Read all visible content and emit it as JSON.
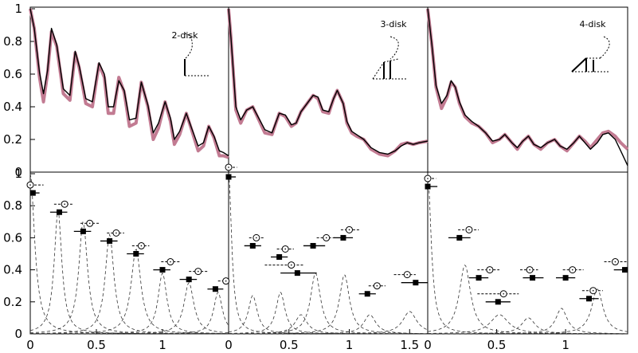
{
  "chart_data": [
    {
      "type": "line",
      "panel": "top-1",
      "label": "2-disk",
      "xlim": [
        0,
        1.5
      ],
      "ylim": [
        0,
        1
      ],
      "x_ticks": [],
      "y_ticks": [
        0,
        0.2,
        0.4,
        0.6,
        0.8,
        1
      ],
      "series": [
        {
          "color": "#c27b92",
          "x": [
            0.0,
            0.03,
            0.07,
            0.1,
            0.13,
            0.16,
            0.2,
            0.25,
            0.3,
            0.34,
            0.37,
            0.42,
            0.47,
            0.52,
            0.56,
            0.59,
            0.63,
            0.67,
            0.71,
            0.75,
            0.8,
            0.84,
            0.89,
            0.93,
            0.97,
            1.02,
            1.06,
            1.09,
            1.13,
            1.18,
            1.22,
            1.27,
            1.31,
            1.35,
            1.39,
            1.43,
            1.46,
            1.5
          ],
          "y": [
            1.0,
            0.88,
            0.58,
            0.43,
            0.6,
            0.86,
            0.77,
            0.48,
            0.44,
            0.73,
            0.64,
            0.42,
            0.4,
            0.66,
            0.58,
            0.36,
            0.36,
            0.58,
            0.49,
            0.28,
            0.3,
            0.55,
            0.4,
            0.2,
            0.27,
            0.43,
            0.31,
            0.17,
            0.23,
            0.36,
            0.26,
            0.13,
            0.16,
            0.28,
            0.21,
            0.1,
            0.1,
            0.09
          ]
        },
        {
          "color": "#000000",
          "x": [
            0.0,
            0.03,
            0.07,
            0.1,
            0.13,
            0.16,
            0.2,
            0.25,
            0.3,
            0.34,
            0.37,
            0.42,
            0.47,
            0.52,
            0.56,
            0.59,
            0.63,
            0.67,
            0.71,
            0.75,
            0.8,
            0.84,
            0.89,
            0.93,
            0.97,
            1.02,
            1.06,
            1.09,
            1.13,
            1.18,
            1.22,
            1.27,
            1.31,
            1.35,
            1.39,
            1.43,
            1.46,
            1.5
          ],
          "y": [
            1.0,
            0.88,
            0.61,
            0.48,
            0.62,
            0.88,
            0.78,
            0.51,
            0.47,
            0.74,
            0.65,
            0.45,
            0.43,
            0.67,
            0.6,
            0.4,
            0.4,
            0.56,
            0.5,
            0.32,
            0.33,
            0.55,
            0.41,
            0.24,
            0.3,
            0.43,
            0.33,
            0.2,
            0.25,
            0.36,
            0.27,
            0.16,
            0.18,
            0.28,
            0.22,
            0.13,
            0.12,
            0.1
          ]
        }
      ]
    },
    {
      "type": "line",
      "panel": "top-2",
      "label": "3-disk",
      "xlim": [
        0,
        1.65
      ],
      "ylim": [
        0,
        1
      ],
      "x_ticks": [],
      "y_ticks": [],
      "series": [
        {
          "color": "#c27b92",
          "x": [
            0.0,
            0.02,
            0.06,
            0.1,
            0.15,
            0.2,
            0.25,
            0.3,
            0.36,
            0.42,
            0.47,
            0.52,
            0.56,
            0.6,
            0.65,
            0.7,
            0.74,
            0.78,
            0.83,
            0.87,
            0.9,
            0.95,
            0.98,
            1.02,
            1.06,
            1.12,
            1.18,
            1.25,
            1.32,
            1.38,
            1.43,
            1.48,
            1.53,
            1.58,
            1.65
          ],
          "y": [
            1.0,
            0.82,
            0.38,
            0.3,
            0.38,
            0.4,
            0.32,
            0.24,
            0.23,
            0.36,
            0.34,
            0.28,
            0.3,
            0.37,
            0.42,
            0.47,
            0.45,
            0.37,
            0.36,
            0.45,
            0.5,
            0.42,
            0.3,
            0.24,
            0.22,
            0.2,
            0.14,
            0.11,
            0.1,
            0.13,
            0.17,
            0.18,
            0.17,
            0.18,
            0.19
          ]
        },
        {
          "color": "#000000",
          "x": [
            0.0,
            0.02,
            0.06,
            0.1,
            0.15,
            0.2,
            0.25,
            0.3,
            0.36,
            0.42,
            0.47,
            0.52,
            0.56,
            0.6,
            0.65,
            0.7,
            0.74,
            0.78,
            0.83,
            0.87,
            0.9,
            0.95,
            0.98,
            1.02,
            1.06,
            1.12,
            1.18,
            1.25,
            1.32,
            1.38,
            1.43,
            1.48,
            1.53,
            1.58,
            1.65
          ],
          "y": [
            1.0,
            0.82,
            0.4,
            0.32,
            0.38,
            0.4,
            0.33,
            0.26,
            0.24,
            0.36,
            0.35,
            0.29,
            0.3,
            0.37,
            0.42,
            0.47,
            0.46,
            0.38,
            0.37,
            0.45,
            0.5,
            0.42,
            0.31,
            0.25,
            0.23,
            0.2,
            0.15,
            0.12,
            0.11,
            0.13,
            0.16,
            0.18,
            0.17,
            0.18,
            0.19
          ]
        }
      ]
    },
    {
      "type": "line",
      "panel": "top-3",
      "label": "4-disk",
      "xlim": [
        0,
        1.45
      ],
      "ylim": [
        0,
        1
      ],
      "x_ticks": [],
      "y_ticks": [],
      "series": [
        {
          "color": "#c27b92",
          "x": [
            0.0,
            0.03,
            0.06,
            0.1,
            0.14,
            0.17,
            0.2,
            0.23,
            0.27,
            0.32,
            0.37,
            0.42,
            0.47,
            0.52,
            0.56,
            0.61,
            0.65,
            0.69,
            0.73,
            0.77,
            0.82,
            0.87,
            0.92,
            0.96,
            1.01,
            1.06,
            1.1,
            1.14,
            1.18,
            1.23,
            1.27,
            1.31,
            1.36,
            1.4,
            1.45
          ],
          "y": [
            1.0,
            0.78,
            0.52,
            0.39,
            0.46,
            0.55,
            0.52,
            0.42,
            0.34,
            0.3,
            0.28,
            0.24,
            0.18,
            0.2,
            0.23,
            0.18,
            0.14,
            0.19,
            0.22,
            0.17,
            0.14,
            0.18,
            0.2,
            0.16,
            0.13,
            0.18,
            0.22,
            0.19,
            0.15,
            0.2,
            0.24,
            0.25,
            0.22,
            0.18,
            0.14
          ]
        },
        {
          "color": "#000000",
          "x": [
            0.0,
            0.03,
            0.06,
            0.1,
            0.14,
            0.17,
            0.2,
            0.23,
            0.27,
            0.32,
            0.37,
            0.42,
            0.47,
            0.52,
            0.56,
            0.61,
            0.65,
            0.69,
            0.73,
            0.77,
            0.82,
            0.87,
            0.92,
            0.96,
            1.01,
            1.06,
            1.1,
            1.14,
            1.18,
            1.23,
            1.27,
            1.31,
            1.36,
            1.4,
            1.45
          ],
          "y": [
            1.0,
            0.78,
            0.53,
            0.42,
            0.47,
            0.56,
            0.52,
            0.43,
            0.35,
            0.31,
            0.28,
            0.24,
            0.19,
            0.2,
            0.23,
            0.18,
            0.15,
            0.19,
            0.22,
            0.17,
            0.15,
            0.18,
            0.2,
            0.16,
            0.14,
            0.18,
            0.22,
            0.18,
            0.14,
            0.18,
            0.23,
            0.24,
            0.2,
            0.13,
            0.04
          ]
        }
      ]
    },
    {
      "type": "scatter",
      "panel": "bottom-1",
      "xlim": [
        0,
        1.5
      ],
      "ylim": [
        0,
        1
      ],
      "x_ticks": [
        0,
        0.5,
        1
      ],
      "y_ticks": [
        0,
        0.2,
        0.4,
        0.6,
        0.8,
        1
      ],
      "squares": [
        {
          "x": 0.02,
          "y": 0.88,
          "x_from": 0.0,
          "x_to": 0.07
        },
        {
          "x": 0.22,
          "y": 0.76,
          "x_from": 0.15,
          "x_to": 0.28
        },
        {
          "x": 0.4,
          "y": 0.64,
          "x_from": 0.33,
          "x_to": 0.46
        },
        {
          "x": 0.6,
          "y": 0.58,
          "x_from": 0.53,
          "x_to": 0.66
        },
        {
          "x": 0.8,
          "y": 0.5,
          "x_from": 0.73,
          "x_to": 0.86
        },
        {
          "x": 1.0,
          "y": 0.4,
          "x_from": 0.93,
          "x_to": 1.06
        },
        {
          "x": 1.2,
          "y": 0.34,
          "x_from": 1.13,
          "x_to": 1.26
        },
        {
          "x": 1.4,
          "y": 0.28,
          "x_from": 1.34,
          "x_to": 1.46
        }
      ],
      "circles": [
        {
          "x": 0.0,
          "y": 0.93,
          "x_from": 0.0,
          "x_to": 0.1
        },
        {
          "x": 0.26,
          "y": 0.81,
          "x_from": 0.18,
          "x_to": 0.32
        },
        {
          "x": 0.45,
          "y": 0.69,
          "x_from": 0.38,
          "x_to": 0.52
        },
        {
          "x": 0.65,
          "y": 0.63,
          "x_from": 0.58,
          "x_to": 0.71
        },
        {
          "x": 0.84,
          "y": 0.55,
          "x_from": 0.77,
          "x_to": 0.9
        },
        {
          "x": 1.06,
          "y": 0.45,
          "x_from": 0.99,
          "x_to": 1.13
        },
        {
          "x": 1.27,
          "y": 0.39,
          "x_from": 1.2,
          "x_to": 1.34
        },
        {
          "x": 1.48,
          "y": 0.33,
          "x_from": 1.42,
          "x_to": 1.5
        }
      ],
      "dashed_peaks": [
        {
          "center": 0.0,
          "height": 1.0,
          "width": 0.04
        },
        {
          "center": 0.21,
          "height": 0.77,
          "width": 0.035
        },
        {
          "center": 0.4,
          "height": 0.7,
          "width": 0.04
        },
        {
          "center": 0.6,
          "height": 0.62,
          "width": 0.04
        },
        {
          "center": 0.8,
          "height": 0.53,
          "width": 0.045
        },
        {
          "center": 1.0,
          "height": 0.38,
          "width": 0.04
        },
        {
          "center": 1.2,
          "height": 0.32,
          "width": 0.045
        },
        {
          "center": 1.42,
          "height": 0.26,
          "width": 0.04
        }
      ]
    },
    {
      "type": "scatter",
      "panel": "bottom-2",
      "xlim": [
        0,
        1.65
      ],
      "ylim": [
        0,
        1
      ],
      "x_ticks": [
        0,
        0.5,
        1,
        1.5
      ],
      "y_ticks": [],
      "squares": [
        {
          "x": 0.0,
          "y": 0.98,
          "x_from": 0.0,
          "x_to": 0.06
        },
        {
          "x": 0.2,
          "y": 0.55,
          "x_from": 0.13,
          "x_to": 0.27
        },
        {
          "x": 0.42,
          "y": 0.48,
          "x_from": 0.35,
          "x_to": 0.49
        },
        {
          "x": 0.57,
          "y": 0.38,
          "x_from": 0.43,
          "x_to": 0.73
        },
        {
          "x": 0.7,
          "y": 0.55,
          "x_from": 0.62,
          "x_to": 0.8
        },
        {
          "x": 0.95,
          "y": 0.6,
          "x_from": 0.87,
          "x_to": 1.03
        },
        {
          "x": 1.15,
          "y": 0.25,
          "x_from": 1.08,
          "x_to": 1.22
        },
        {
          "x": 1.55,
          "y": 0.32,
          "x_from": 1.43,
          "x_to": 1.65
        }
      ],
      "circles": [
        {
          "x": 0.0,
          "y": 1.04,
          "x_from": 0.0,
          "x_to": 0.07
        },
        {
          "x": 0.23,
          "y": 0.6,
          "x_from": 0.17,
          "x_to": 0.29
        },
        {
          "x": 0.47,
          "y": 0.53,
          "x_from": 0.4,
          "x_to": 0.54
        },
        {
          "x": 0.52,
          "y": 0.43,
          "x_from": 0.3,
          "x_to": 0.62
        },
        {
          "x": 0.81,
          "y": 0.6,
          "x_from": 0.73,
          "x_to": 0.88
        },
        {
          "x": 1.0,
          "y": 0.65,
          "x_from": 0.93,
          "x_to": 1.09
        },
        {
          "x": 1.23,
          "y": 0.3,
          "x_from": 1.16,
          "x_to": 1.3
        },
        {
          "x": 1.48,
          "y": 0.37,
          "x_from": 1.37,
          "x_to": 1.55
        }
      ],
      "dashed_peaks": [
        {
          "center": 0.0,
          "height": 1.0,
          "width": 0.03
        },
        {
          "center": 0.2,
          "height": 0.24,
          "width": 0.045
        },
        {
          "center": 0.43,
          "height": 0.26,
          "width": 0.045
        },
        {
          "center": 0.6,
          "height": 0.12,
          "width": 0.06
        },
        {
          "center": 0.72,
          "height": 0.38,
          "width": 0.05
        },
        {
          "center": 0.96,
          "height": 0.37,
          "width": 0.05
        },
        {
          "center": 1.17,
          "height": 0.12,
          "width": 0.06
        },
        {
          "center": 1.5,
          "height": 0.14,
          "width": 0.07
        }
      ]
    },
    {
      "type": "scatter",
      "panel": "bottom-3",
      "xlim": [
        0,
        1.45
      ],
      "ylim": [
        0,
        1
      ],
      "x_ticks": [
        0,
        0.5,
        1
      ],
      "y_ticks": [],
      "squares": [
        {
          "x": 0.0,
          "y": 0.92,
          "x_from": 0.0,
          "x_to": 0.07
        },
        {
          "x": 0.23,
          "y": 0.6,
          "x_from": 0.15,
          "x_to": 0.31
        },
        {
          "x": 0.37,
          "y": 0.35,
          "x_from": 0.3,
          "x_to": 0.44
        },
        {
          "x": 0.51,
          "y": 0.2,
          "x_from": 0.42,
          "x_to": 0.6
        },
        {
          "x": 0.76,
          "y": 0.35,
          "x_from": 0.69,
          "x_to": 0.84
        },
        {
          "x": 1.0,
          "y": 0.35,
          "x_from": 0.93,
          "x_to": 1.07
        },
        {
          "x": 1.17,
          "y": 0.22,
          "x_from": 1.1,
          "x_to": 1.24
        },
        {
          "x": 1.43,
          "y": 0.4,
          "x_from": 1.35,
          "x_to": 1.45
        }
      ],
      "circles": [
        {
          "x": 0.0,
          "y": 0.97,
          "x_from": 0.0,
          "x_to": 0.06
        },
        {
          "x": 0.3,
          "y": 0.65,
          "x_from": 0.22,
          "x_to": 0.37
        },
        {
          "x": 0.45,
          "y": 0.4,
          "x_from": 0.36,
          "x_to": 0.52
        },
        {
          "x": 0.55,
          "y": 0.25,
          "x_from": 0.36,
          "x_to": 0.66
        },
        {
          "x": 0.74,
          "y": 0.4,
          "x_from": 0.67,
          "x_to": 0.8
        },
        {
          "x": 1.05,
          "y": 0.4,
          "x_from": 0.98,
          "x_to": 1.13
        },
        {
          "x": 1.2,
          "y": 0.27,
          "x_from": 1.12,
          "x_to": 1.27
        },
        {
          "x": 1.36,
          "y": 0.45,
          "x_from": 1.28,
          "x_to": 1.45
        }
      ],
      "dashed_peaks": [
        {
          "center": 0.0,
          "height": 1.0,
          "width": 0.03
        },
        {
          "center": 0.27,
          "height": 0.43,
          "width": 0.05
        },
        {
          "center": 0.52,
          "height": 0.12,
          "width": 0.08
        },
        {
          "center": 0.73,
          "height": 0.1,
          "width": 0.06
        },
        {
          "center": 0.97,
          "height": 0.16,
          "width": 0.05
        },
        {
          "center": 1.23,
          "height": 0.28,
          "width": 0.05
        }
      ]
    }
  ]
}
